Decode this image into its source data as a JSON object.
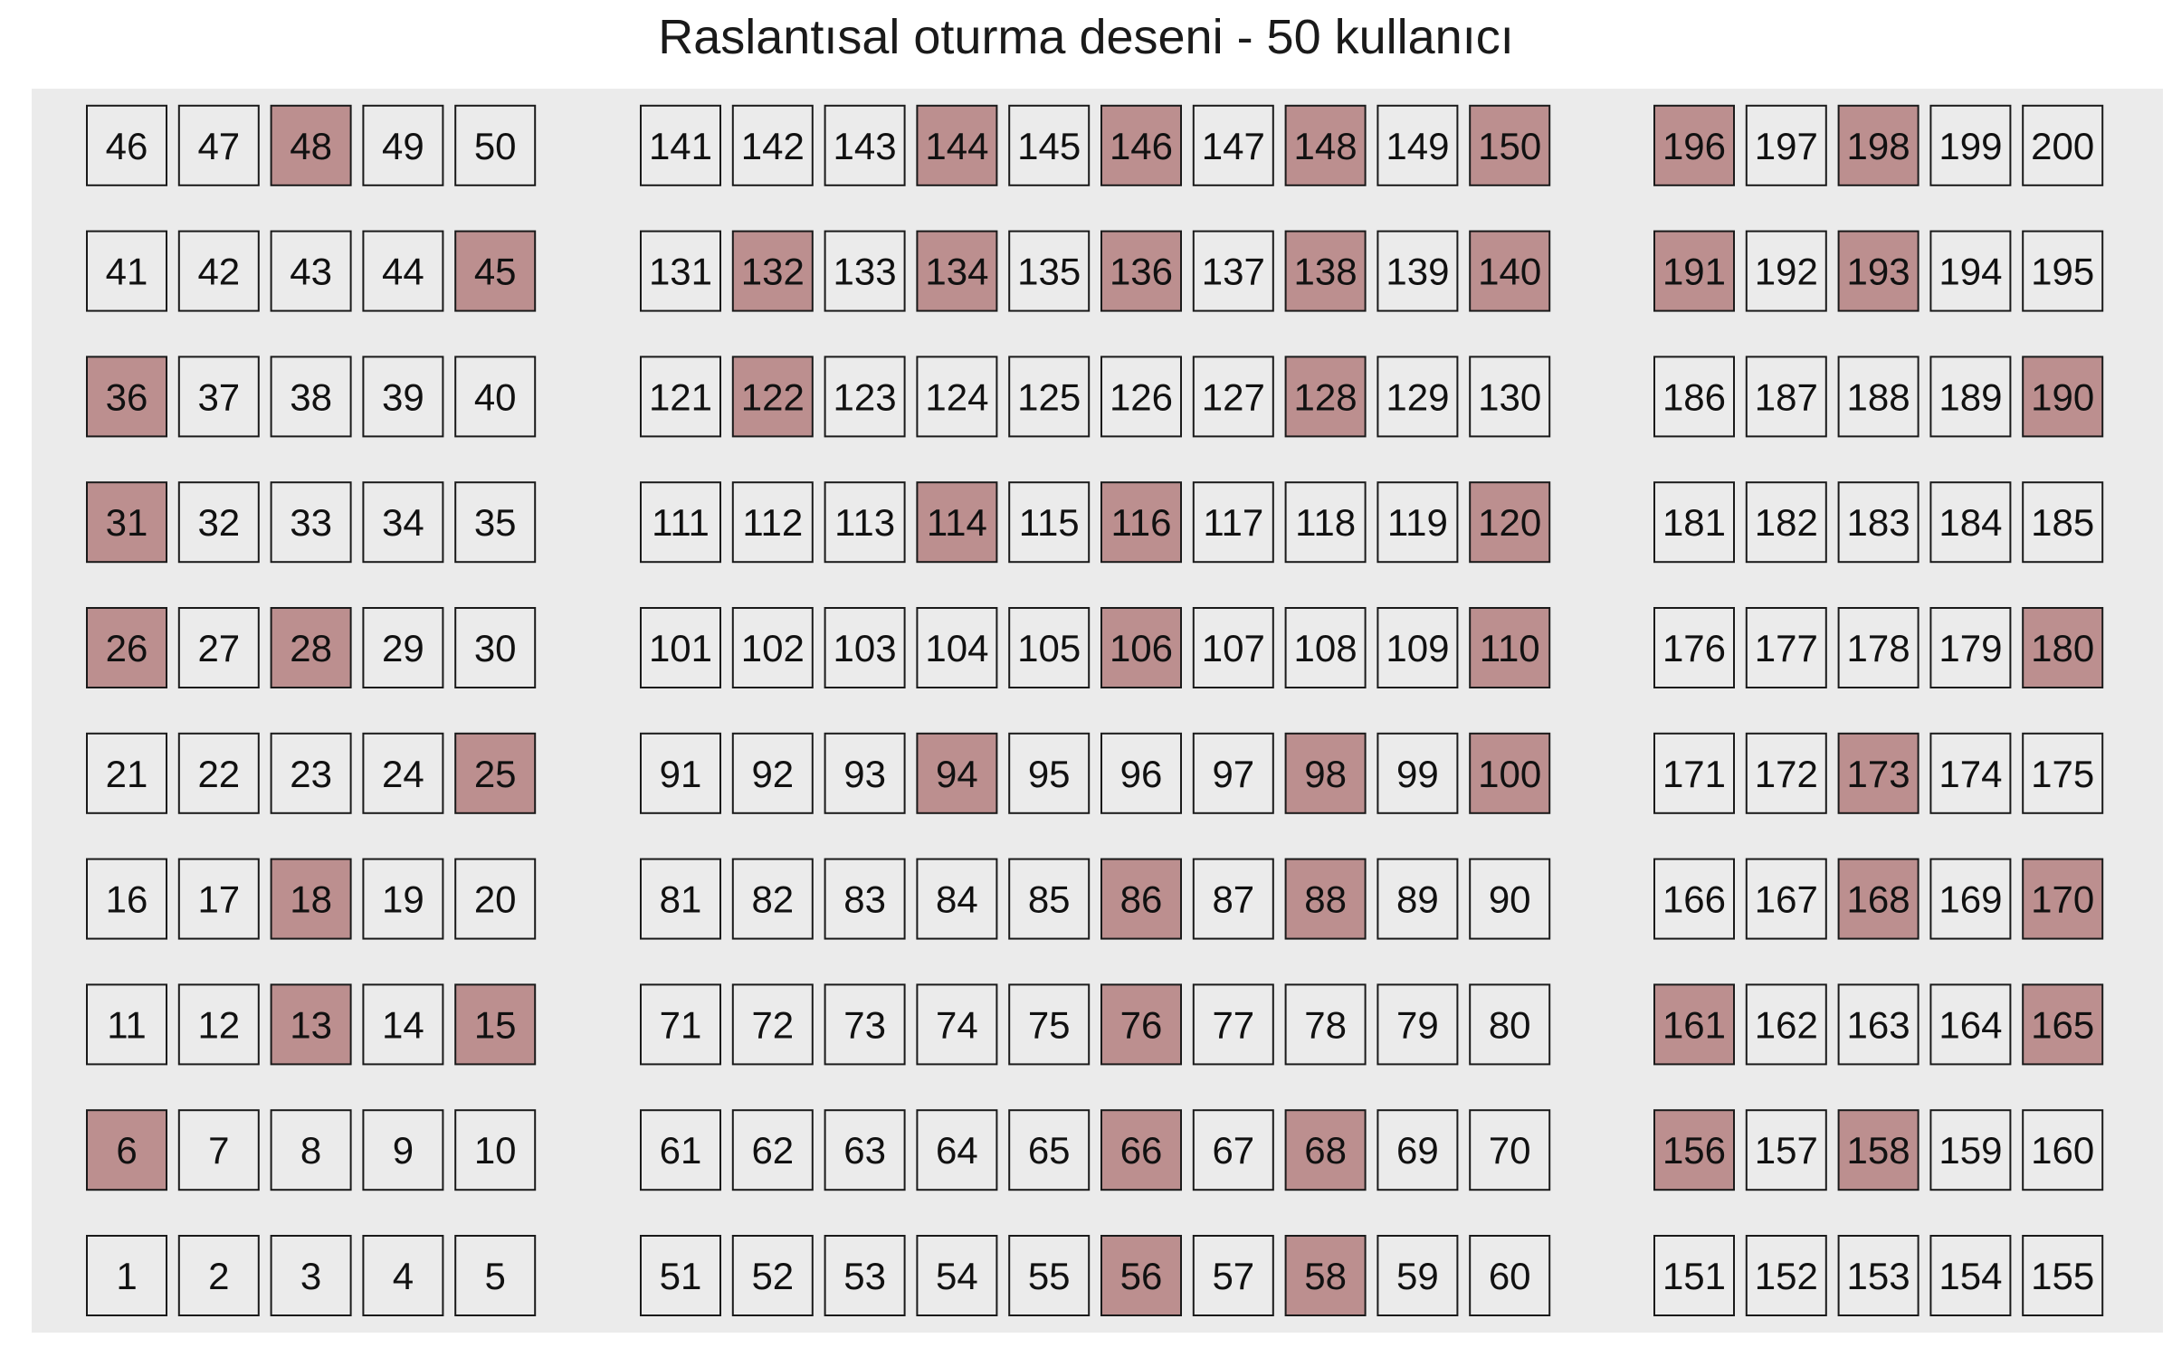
{
  "chart_data": {
    "type": "heatmap",
    "title": "Raslantısal oturma deseni - 50 kullanıcı",
    "xlabel": "",
    "ylabel": "",
    "grid": false,
    "legend": "none",
    "colors": {
      "background": "#ebebeb",
      "occupied": "#bc8f8f",
      "empty": "#ebebeb",
      "border": "#1a1a1a"
    },
    "blocks": [
      {
        "first_seat": 1,
        "columns": 5,
        "rows": 10
      },
      {
        "first_seat": 51,
        "columns": 10,
        "rows": 10
      },
      {
        "first_seat": 151,
        "columns": 5,
        "rows": 10
      }
    ],
    "seats_total": 200,
    "occupied_seats": [
      6,
      13,
      15,
      18,
      25,
      26,
      28,
      31,
      36,
      45,
      48,
      56,
      58,
      66,
      68,
      76,
      86,
      88,
      94,
      98,
      100,
      106,
      110,
      114,
      116,
      120,
      122,
      128,
      132,
      134,
      136,
      138,
      140,
      144,
      146,
      148,
      150,
      156,
      158,
      161,
      165,
      168,
      170,
      173,
      180,
      190,
      191,
      193,
      196,
      198
    ]
  }
}
